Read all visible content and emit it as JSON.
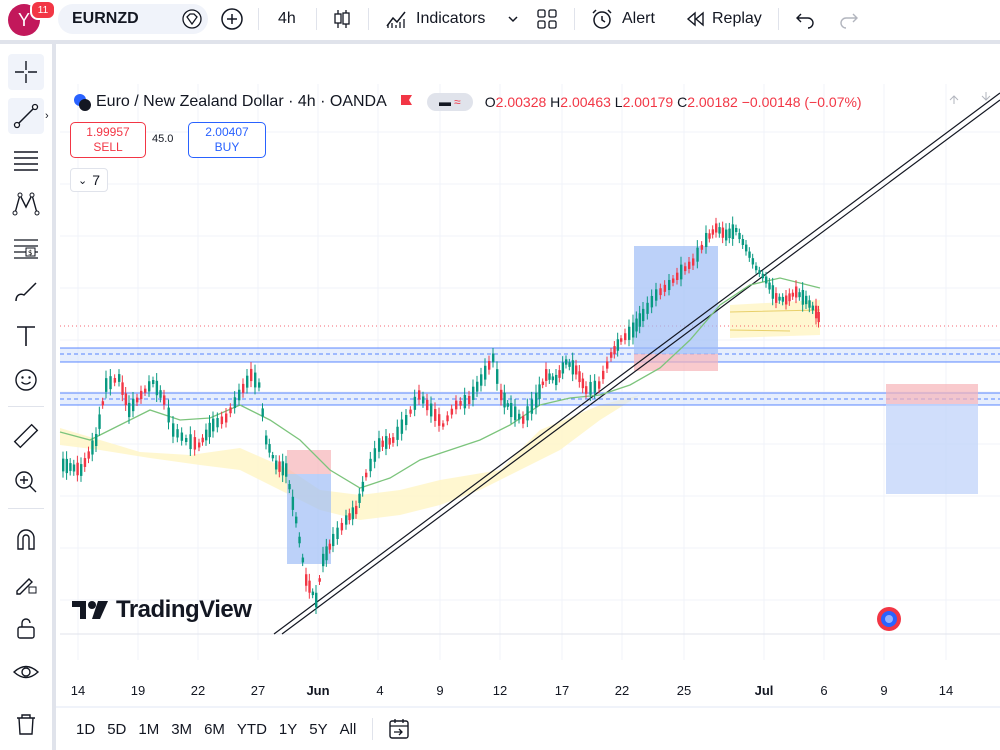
{
  "header": {
    "avatar_letter": "Y",
    "notification_count": "11",
    "symbol": "EURNZD",
    "interval": "4h",
    "indicators_label": "Indicators",
    "alert_label": "Alert",
    "replay_label": "Replay"
  },
  "legend": {
    "title": "Euro / New Zealand Dollar · 4h · OANDA",
    "open_label": "O",
    "open": "2.00328",
    "high_label": "H",
    "high": "2.00463",
    "low_label": "L",
    "low": "2.00179",
    "close_label": "C",
    "close": "2.00182",
    "change": "−0.00148 (−0.07%)"
  },
  "trade": {
    "sell_price": "1.99957",
    "sell_label": "SELL",
    "spread": "45.0",
    "buy_price": "2.00407",
    "buy_label": "BUY",
    "indicator_count": "7"
  },
  "brand": {
    "logo_text": "TradingView"
  },
  "x_axis": {
    "labels": [
      "14",
      "19",
      "22",
      "27",
      "Jun",
      "4",
      "9",
      "12",
      "17",
      "22",
      "25",
      "Jul",
      "6",
      "9",
      "14"
    ]
  },
  "ranges": [
    "1D",
    "5D",
    "1M",
    "3M",
    "6M",
    "YTD",
    "1Y",
    "5Y",
    "All"
  ],
  "colors": {
    "up": "#089981",
    "down": "#f23645",
    "accent": "#2962ff",
    "ma": "#7cc47c",
    "cloud": "#fff5c4"
  }
}
